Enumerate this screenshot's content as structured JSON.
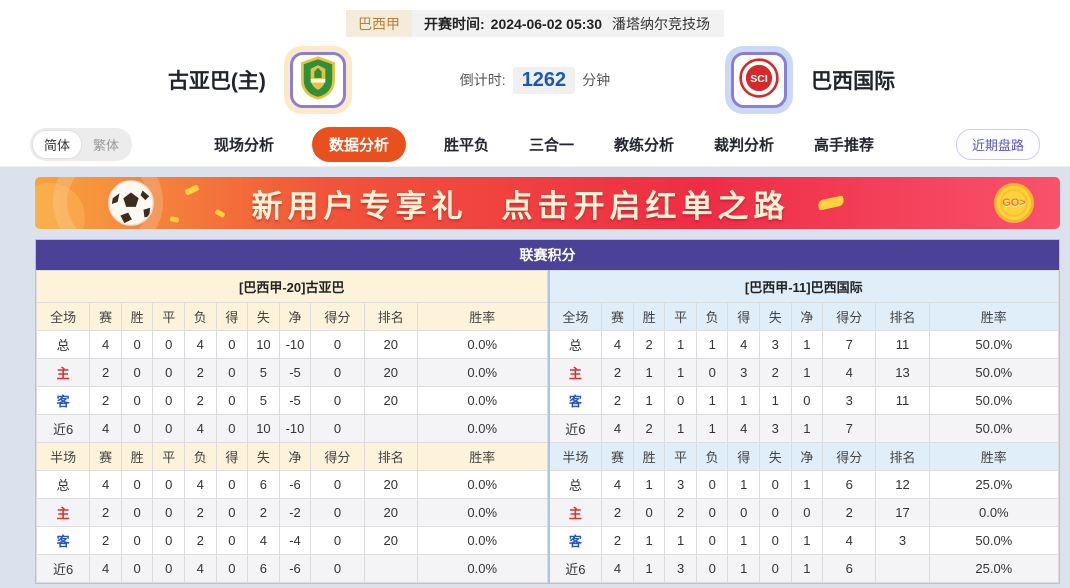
{
  "header": {
    "league_tag": "巴西甲",
    "kickoff_label": "开赛时间:",
    "kickoff_time": "2024-06-02 05:30",
    "venue": "潘塔纳尔竞技场",
    "home_team_name": "古亚巴(主)",
    "away_team_name": "巴西国际",
    "away_crest_text": "SCI",
    "countdown_label": "倒计时:",
    "countdown_value": "1262",
    "countdown_unit": "分钟"
  },
  "nav": {
    "lang": {
      "simplified": "简体",
      "traditional": "繁体"
    },
    "items": [
      {
        "label": "现场分析",
        "active": false
      },
      {
        "label": "数据分析",
        "active": true
      },
      {
        "label": "胜平负",
        "active": false
      },
      {
        "label": "三合一",
        "active": false
      },
      {
        "label": "教练分析",
        "active": false
      },
      {
        "label": "裁判分析",
        "active": false
      },
      {
        "label": "高手推荐",
        "active": false
      }
    ],
    "recent_trend_button": "近期盘路"
  },
  "banner": {
    "text_left": "新用户专享礼",
    "text_right": "点击开启红单之路",
    "go_label": "GO>"
  },
  "stats": {
    "title": "联赛积分",
    "home_header": "[巴西甲-20]古亚巴",
    "away_header": "[巴西甲-11]巴西国际",
    "columns": [
      "赛",
      "胜",
      "平",
      "负",
      "得",
      "失",
      "净",
      "得分",
      "排名",
      "胜率"
    ],
    "sections": [
      {
        "scope_label": "全场",
        "home_rows": [
          {
            "label": "总",
            "type": "total",
            "cells": [
              "4",
              "0",
              "0",
              "4",
              "0",
              "10",
              "-10",
              "0",
              "20",
              "0.0%"
            ]
          },
          {
            "label": "主",
            "type": "host",
            "cells": [
              "2",
              "0",
              "0",
              "2",
              "0",
              "5",
              "-5",
              "0",
              "20",
              "0.0%"
            ]
          },
          {
            "label": "客",
            "type": "guest",
            "cells": [
              "2",
              "0",
              "0",
              "2",
              "0",
              "5",
              "-5",
              "0",
              "20",
              "0.0%"
            ]
          },
          {
            "label": "近6",
            "type": "recent",
            "cells": [
              "4",
              "0",
              "0",
              "4",
              "0",
              "10",
              "-10",
              "0",
              "",
              "0.0%"
            ]
          }
        ],
        "away_rows": [
          {
            "label": "总",
            "type": "total",
            "cells": [
              "4",
              "2",
              "1",
              "1",
              "4",
              "3",
              "1",
              "7",
              "11",
              "50.0%"
            ]
          },
          {
            "label": "主",
            "type": "host",
            "cells": [
              "2",
              "1",
              "1",
              "0",
              "3",
              "2",
              "1",
              "4",
              "13",
              "50.0%"
            ]
          },
          {
            "label": "客",
            "type": "guest",
            "cells": [
              "2",
              "1",
              "0",
              "1",
              "1",
              "1",
              "0",
              "3",
              "11",
              "50.0%"
            ]
          },
          {
            "label": "近6",
            "type": "recent",
            "cells": [
              "4",
              "2",
              "1",
              "1",
              "4",
              "3",
              "1",
              "7",
              "",
              "50.0%"
            ]
          }
        ]
      },
      {
        "scope_label": "半场",
        "home_rows": [
          {
            "label": "总",
            "type": "total",
            "cells": [
              "4",
              "0",
              "0",
              "4",
              "0",
              "6",
              "-6",
              "0",
              "20",
              "0.0%"
            ]
          },
          {
            "label": "主",
            "type": "host",
            "cells": [
              "2",
              "0",
              "0",
              "2",
              "0",
              "2",
              "-2",
              "0",
              "20",
              "0.0%"
            ]
          },
          {
            "label": "客",
            "type": "guest",
            "cells": [
              "2",
              "0",
              "0",
              "2",
              "0",
              "4",
              "-4",
              "0",
              "20",
              "0.0%"
            ]
          },
          {
            "label": "近6",
            "type": "recent",
            "cells": [
              "4",
              "0",
              "0",
              "4",
              "0",
              "6",
              "-6",
              "0",
              "",
              "0.0%"
            ]
          }
        ],
        "away_rows": [
          {
            "label": "总",
            "type": "total",
            "cells": [
              "4",
              "1",
              "3",
              "0",
              "1",
              "0",
              "1",
              "6",
              "12",
              "25.0%"
            ]
          },
          {
            "label": "主",
            "type": "host",
            "cells": [
              "2",
              "0",
              "2",
              "0",
              "0",
              "0",
              "0",
              "2",
              "17",
              "0.0%"
            ]
          },
          {
            "label": "客",
            "type": "guest",
            "cells": [
              "2",
              "1",
              "1",
              "0",
              "1",
              "0",
              "1",
              "4",
              "3",
              "50.0%"
            ]
          },
          {
            "label": "近6",
            "type": "recent",
            "cells": [
              "4",
              "1",
              "3",
              "0",
              "1",
              "0",
              "1",
              "6",
              "",
              "25.0%"
            ]
          }
        ]
      }
    ]
  },
  "theme": {
    "accent_orange": "#e8511d",
    "title_purple": "#4b4297",
    "home_header_bg": "#fdf2da",
    "away_header_bg": "#e0eefa",
    "host_label_color": "#d93030",
    "guest_label_color": "#2453cc",
    "countdown_blue": "#1658c0",
    "banner_gradient": [
      "#f7a43c",
      "#ee2d45",
      "#f9526b"
    ]
  }
}
